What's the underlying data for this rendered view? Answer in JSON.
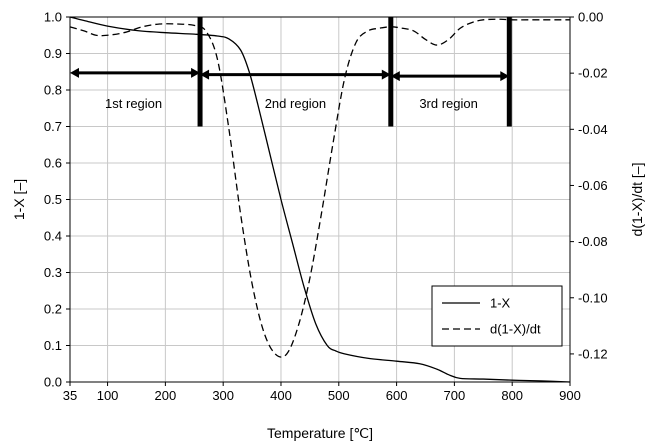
{
  "chart_data": {
    "type": "line",
    "xlabel": "Temperature [℃]",
    "ylabel_left": "1-X [–]",
    "ylabel_right": "d(1-X)/dt [–]",
    "xlim": [
      35,
      900
    ],
    "ylim_left": [
      0,
      1
    ],
    "ylim_right": [
      -0.13,
      0
    ],
    "x_ticks": [
      35,
      100,
      200,
      300,
      400,
      500,
      600,
      700,
      800,
      900
    ],
    "x_tick_labels": [
      "35",
      "100",
      "200",
      "300",
      "400",
      "500",
      "600",
      "700",
      "800",
      "900"
    ],
    "y_left_ticks": [
      0,
      0.1,
      0.2,
      0.3,
      0.4,
      0.5,
      0.6,
      0.7,
      0.8,
      0.9,
      1
    ],
    "y_left_tick_labels": [
      "0.0",
      "0.1",
      "0.2",
      "0.3",
      "0.4",
      "0.5",
      "0.6",
      "0.7",
      "0.8",
      "0.9",
      "1.0"
    ],
    "y_right_ticks": [
      0,
      -0.02,
      -0.04,
      -0.06,
      -0.08,
      -0.1,
      -0.12
    ],
    "y_right_tick_labels": [
      "0.00",
      "-0.02",
      "-0.04",
      "-0.06",
      "-0.08",
      "-0.10",
      "-0.12"
    ],
    "grid": true,
    "legend_position": "lower-right",
    "series": [
      {
        "name": "1-X",
        "axis": "left",
        "style": "solid",
        "x": [
          35,
          60,
          100,
          150,
          200,
          250,
          290,
          310,
          330,
          345,
          360,
          380,
          400,
          420,
          440,
          460,
          480,
          495,
          510,
          550,
          600,
          640,
          670,
          690,
          710,
          750,
          800,
          850,
          900
        ],
        "y": [
          1.0,
          0.99,
          0.975,
          0.963,
          0.957,
          0.953,
          0.948,
          0.94,
          0.91,
          0.85,
          0.76,
          0.63,
          0.5,
          0.38,
          0.26,
          0.16,
          0.1,
          0.085,
          0.077,
          0.065,
          0.057,
          0.05,
          0.035,
          0.02,
          0.01,
          0.008,
          0.005,
          0.003,
          0.0
        ]
      },
      {
        "name": "d(1-X)/dt",
        "axis": "right",
        "style": "dashed",
        "x": [
          35,
          60,
          80,
          100,
          130,
          160,
          190,
          220,
          250,
          270,
          290,
          310,
          330,
          350,
          370,
          390,
          410,
          430,
          450,
          470,
          490,
          510,
          530,
          550,
          570,
          590,
          610,
          630,
          650,
          670,
          690,
          710,
          730,
          750,
          780,
          800,
          850,
          900
        ],
        "y": [
          -0.0035,
          -0.005,
          -0.0065,
          -0.0065,
          -0.0055,
          -0.0035,
          -0.0025,
          -0.0025,
          -0.003,
          -0.005,
          -0.015,
          -0.04,
          -0.07,
          -0.095,
          -0.112,
          -0.12,
          -0.12,
          -0.11,
          -0.093,
          -0.07,
          -0.045,
          -0.022,
          -0.009,
          -0.005,
          -0.004,
          -0.0035,
          -0.004,
          -0.005,
          -0.008,
          -0.01,
          -0.008,
          -0.004,
          -0.002,
          -0.001,
          -0.0008,
          -0.001,
          -0.001,
          -0.001
        ]
      }
    ],
    "region_arrows": [
      {
        "from": 35,
        "to": 260,
        "y": 0.847
      },
      {
        "from": 260,
        "to": 590,
        "y": 0.842
      },
      {
        "from": 590,
        "to": 795,
        "y": 0.838
      }
    ],
    "region_bars": [
      {
        "x": 260,
        "y_from": 1.0,
        "y_to": 0.7
      },
      {
        "x": 590,
        "y_from": 1.0,
        "y_to": 0.7
      },
      {
        "x": 795,
        "y_from": 1.0,
        "y_to": 0.7
      }
    ],
    "region_labels": [
      {
        "text": "1st region",
        "x": 145,
        "y": 0.765
      },
      {
        "text": "2nd region",
        "x": 425,
        "y": 0.765
      },
      {
        "text": "3rd region",
        "x": 690,
        "y": 0.765
      }
    ]
  }
}
